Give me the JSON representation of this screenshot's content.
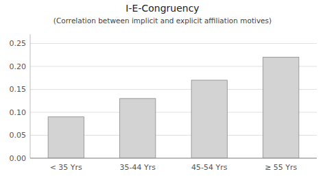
{
  "chart_data": {
    "type": "bar",
    "title": "I-E-Congruency",
    "subtitle": "(Correlation between implicit and explicit affiliation motives)",
    "categories": [
      "< 35 Yrs",
      "35-44 Yrs",
      "45-54 Yrs",
      "≥ 55 Yrs"
    ],
    "values": [
      0.09,
      0.13,
      0.17,
      0.22
    ],
    "color": "#d3d3d3",
    "ylim": [
      0,
      0.27
    ],
    "yticks": [
      {
        "value": 0.0,
        "label": "0.00"
      },
      {
        "value": 0.05,
        "label": "0.05"
      },
      {
        "value": 0.1,
        "label": "0.10"
      },
      {
        "value": 0.15,
        "label": "0.15"
      },
      {
        "value": 0.2,
        "label": "0.20"
      },
      {
        "value": 0.25,
        "label": "0.25"
      }
    ],
    "grid": true
  }
}
